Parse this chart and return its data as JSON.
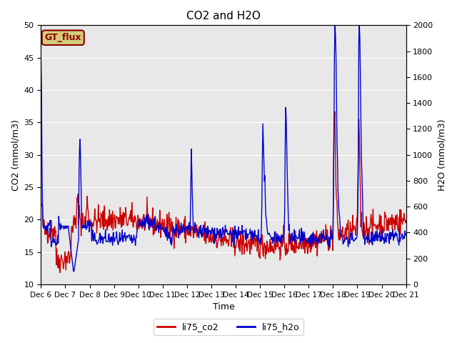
{
  "title": "CO2 and H2O",
  "ylabel_left": "CO2 (mmol/m3)",
  "ylabel_right": "H2O (mmol/m3)",
  "xlabel": "Time",
  "ylim_left": [
    10,
    50
  ],
  "ylim_right": [
    0,
    2000
  ],
  "yticks_left": [
    10,
    15,
    20,
    25,
    30,
    35,
    40,
    45,
    50
  ],
  "yticks_right": [
    0,
    200,
    400,
    600,
    800,
    1000,
    1200,
    1400,
    1600,
    1800,
    2000
  ],
  "xtick_labels": [
    "Dec 6",
    "Dec 7",
    "Dec 8",
    "Dec 9",
    "Dec 10",
    "Dec 11",
    "Dec 12",
    "Dec 13",
    "Dec 14",
    "Dec 15",
    "Dec 16",
    "Dec 17",
    "Dec 18",
    "Dec 19",
    "Dec 20",
    "Dec 21"
  ],
  "co2_color": "#cc0000",
  "h2o_color": "#0000cc",
  "bg_color": "#e8e8e8",
  "fig_bg": "#ffffff",
  "legend_label_co2": "li75_co2",
  "legend_label_h2o": "li75_h2o",
  "gt_flux_label": "GT_flux",
  "gt_flux_bg": "#d4cc7a",
  "gt_flux_border": "#8b0000",
  "linewidth": 1.0
}
